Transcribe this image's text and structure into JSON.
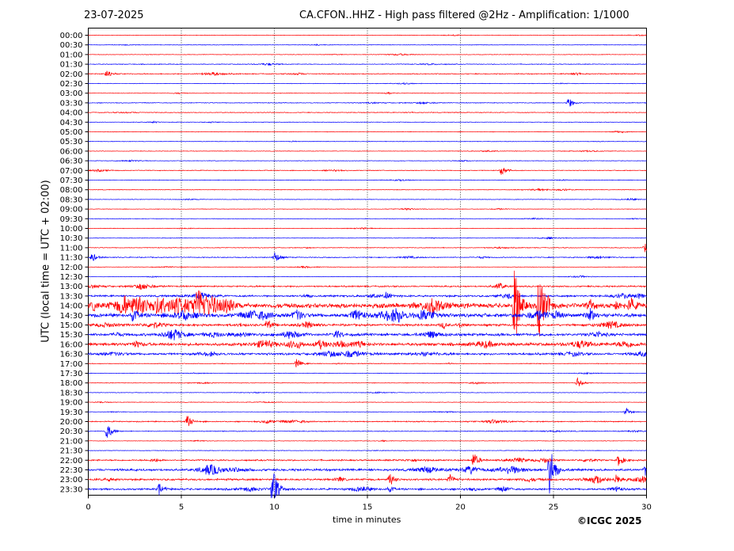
{
  "header": {
    "date": "23-07-2025",
    "title": "CA.CFON..HHZ - High pass filtered @2Hz - Amplification: 1/1000"
  },
  "footer": {
    "credit": "©ICGC 2025"
  },
  "chart_data": {
    "type": "line",
    "title": "CA.CFON..HHZ - High pass filtered @2Hz - Amplification: 1/1000",
    "xlabel": "time in minutes",
    "ylabel": "UTC (local time = UTC + 02:00)",
    "xlim": [
      0,
      30
    ],
    "xticks": [
      0,
      5,
      10,
      15,
      20,
      25,
      30
    ],
    "grid_x": "dotted vertical lines at 5-minute ticks",
    "row_labels": [
      "00:00",
      "00:30",
      "01:00",
      "01:30",
      "02:00",
      "02:30",
      "03:00",
      "03:30",
      "04:00",
      "04:30",
      "05:00",
      "05:30",
      "06:00",
      "06:30",
      "07:00",
      "07:30",
      "08:00",
      "08:30",
      "09:00",
      "09:30",
      "10:00",
      "10:30",
      "11:00",
      "11:30",
      "12:00",
      "12:30",
      "13:00",
      "13:30",
      "14:00",
      "14:30",
      "15:00",
      "15:30",
      "16:00",
      "16:30",
      "17:00",
      "17:30",
      "18:00",
      "18:30",
      "19:00",
      "19:30",
      "20:00",
      "20:30",
      "21:00",
      "21:30",
      "22:00",
      "22:30",
      "23:00",
      "23:30"
    ],
    "trace_colors": [
      "#ff0000",
      "#0000ff"
    ],
    "row_activity": [
      0.3,
      0.3,
      0.3,
      0.4,
      0.5,
      0.3,
      0.3,
      0.4,
      0.4,
      0.3,
      0.3,
      0.3,
      0.3,
      0.3,
      0.4,
      0.3,
      0.3,
      0.3,
      0.3,
      0.3,
      0.3,
      0.3,
      0.4,
      0.5,
      0.3,
      0.3,
      0.8,
      1.0,
      2.6,
      2.0,
      1.2,
      1.4,
      1.6,
      1.2,
      0.4,
      0.3,
      0.3,
      0.3,
      0.3,
      0.3,
      0.6,
      0.4,
      0.3,
      0.3,
      0.8,
      1.2,
      1.0,
      1.0
    ],
    "events": [
      {
        "row": 4,
        "t": 1.0,
        "amp": 6
      },
      {
        "row": 7,
        "t": 25.8,
        "amp": 7
      },
      {
        "row": 14,
        "t": 22.2,
        "amp": 6
      },
      {
        "row": 23,
        "t": 0.2,
        "amp": 6
      },
      {
        "row": 23,
        "t": 10.0,
        "amp": 8
      },
      {
        "row": 22,
        "t": 29.9,
        "amp": 6
      },
      {
        "row": 27,
        "t": 16.0,
        "amp": 6
      },
      {
        "row": 28,
        "t": 22.9,
        "amp": 60
      },
      {
        "row": 28,
        "t": 24.2,
        "amp": 50
      },
      {
        "row": 29,
        "t": 2.4,
        "amp": 8
      },
      {
        "row": 30,
        "t": 9.6,
        "amp": 7
      },
      {
        "row": 31,
        "t": 13.3,
        "amp": 7
      },
      {
        "row": 34,
        "t": 11.2,
        "amp": 6
      },
      {
        "row": 36,
        "t": 26.3,
        "amp": 6
      },
      {
        "row": 39,
        "t": 28.9,
        "amp": 5
      },
      {
        "row": 40,
        "t": 5.3,
        "amp": 8
      },
      {
        "row": 41,
        "t": 1.0,
        "amp": 12
      },
      {
        "row": 44,
        "t": 20.7,
        "amp": 10
      },
      {
        "row": 44,
        "t": 28.5,
        "amp": 8
      },
      {
        "row": 45,
        "t": 24.8,
        "amp": 35
      },
      {
        "row": 45,
        "t": 29.9,
        "amp": 8
      },
      {
        "row": 46,
        "t": 16.2,
        "amp": 8
      },
      {
        "row": 46,
        "t": 19.4,
        "amp": 7
      },
      {
        "row": 46,
        "t": 28.4,
        "amp": 7
      },
      {
        "row": 47,
        "t": 9.9,
        "amp": 30
      },
      {
        "row": 47,
        "t": 3.8,
        "amp": 7
      }
    ]
  }
}
